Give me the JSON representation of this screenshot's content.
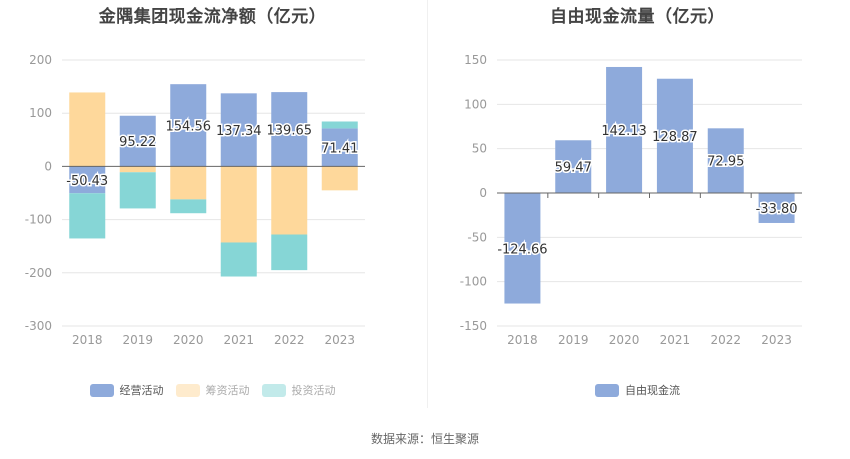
{
  "source_label": "数据来源：恒生聚源",
  "chart_data": [
    {
      "type": "bar",
      "stacked": true,
      "title": "金隅集团现金流净额（亿元）",
      "xlabel": "",
      "ylabel": "",
      "categories": [
        "2018",
        "2019",
        "2020",
        "2021",
        "2022",
        "2023"
      ],
      "ylim": [
        -300,
        200
      ],
      "yticks": [
        200,
        100,
        0,
        -100,
        -200,
        -300
      ],
      "grid": true,
      "legend_position": "bottom",
      "series": [
        {
          "name": "经营活动",
          "color": "#8eaadb",
          "values": [
            -50.43,
            95.22,
            154.56,
            137.34,
            139.65,
            71.41
          ],
          "labels": [
            "-50.43",
            "95.22",
            "154.56",
            "137.34",
            "139.65",
            "71.41"
          ],
          "legend_faded": false
        },
        {
          "name": "筹资活动",
          "color": "#fed89b",
          "values": [
            139,
            -11,
            -62,
            -143,
            -128,
            -45
          ],
          "legend_faded": true
        },
        {
          "name": "投资活动",
          "color": "#86d6d6",
          "values": [
            -85,
            -68,
            -26,
            -64,
            -67,
            13
          ],
          "legend_faded": true
        }
      ]
    },
    {
      "type": "bar",
      "title": "自由现金流量（亿元）",
      "xlabel": "",
      "ylabel": "",
      "categories": [
        "2018",
        "2019",
        "2020",
        "2021",
        "2022",
        "2023"
      ],
      "ylim": [
        -150,
        150
      ],
      "yticks": [
        150,
        100,
        50,
        0,
        -50,
        -100,
        -150
      ],
      "grid": true,
      "legend_position": "bottom",
      "series": [
        {
          "name": "自由现金流",
          "color": "#8eaadb",
          "values": [
            -124.66,
            59.47,
            142.13,
            128.87,
            72.95,
            -33.8
          ],
          "labels": [
            "-124.66",
            "59.47",
            "142.13",
            "128.87",
            "72.95",
            "-33.80"
          ],
          "legend_faded": false
        }
      ]
    }
  ]
}
